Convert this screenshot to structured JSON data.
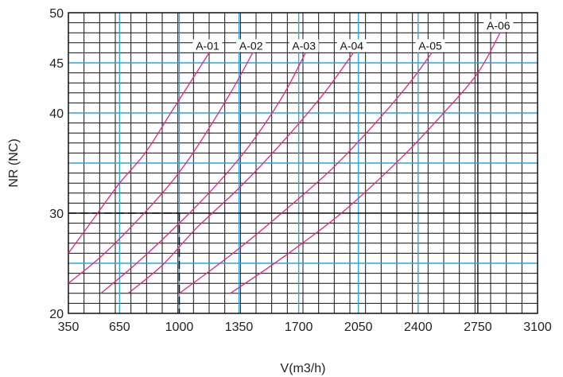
{
  "chart_data": {
    "type": "line",
    "xlabel": "V(m3/h)",
    "ylabel": "NR (NC)",
    "xlim": [
      350,
      3100
    ],
    "ylim": [
      20,
      50
    ],
    "x_ticks": [
      350,
      650,
      1000,
      1350,
      1700,
      2050,
      2400,
      2750,
      3100
    ],
    "y_ticks": [
      20,
      30,
      40,
      45,
      50
    ],
    "grid": true,
    "colors": {
      "curve": "#e8257f",
      "blue_grid": "#2aa6e0",
      "black_grid": "#111111"
    },
    "series": [
      {
        "name": "A-01",
        "x": [
          350,
          500,
          650,
          800,
          950,
          1100,
          1175
        ],
        "y": [
          26,
          29.5,
          33,
          36,
          40,
          44,
          46
        ]
      },
      {
        "name": "A-02",
        "x": [
          350,
          550,
          750,
          950,
          1100,
          1300,
          1430
        ],
        "y": [
          23,
          25.8,
          29.2,
          33,
          36.5,
          42,
          46
        ]
      },
      {
        "name": "A-03",
        "x": [
          540,
          750,
          1000,
          1200,
          1400,
          1600,
          1740
        ],
        "y": [
          22,
          25,
          29,
          32.5,
          36.5,
          41.5,
          46
        ]
      },
      {
        "name": "A-04",
        "x": [
          700,
          900,
          1100,
          1350,
          1600,
          1850,
          2020
        ],
        "y": [
          22,
          24.8,
          28.5,
          32.5,
          37,
          42,
          46
        ]
      },
      {
        "name": "A-05",
        "x": [
          1000,
          1300,
          1600,
          1900,
          2150,
          2350,
          2480
        ],
        "y": [
          22,
          25.8,
          30,
          34.5,
          39,
          43,
          46
        ]
      },
      {
        "name": "A-06",
        "x": [
          1300,
          1600,
          1950,
          2300,
          2550,
          2750,
          2880
        ],
        "y": [
          22,
          25.5,
          30,
          35.5,
          40,
          44,
          48
        ]
      }
    ],
    "annotations": [
      {
        "type": "dashed-guide",
        "x": 1000,
        "y": 30
      }
    ]
  }
}
